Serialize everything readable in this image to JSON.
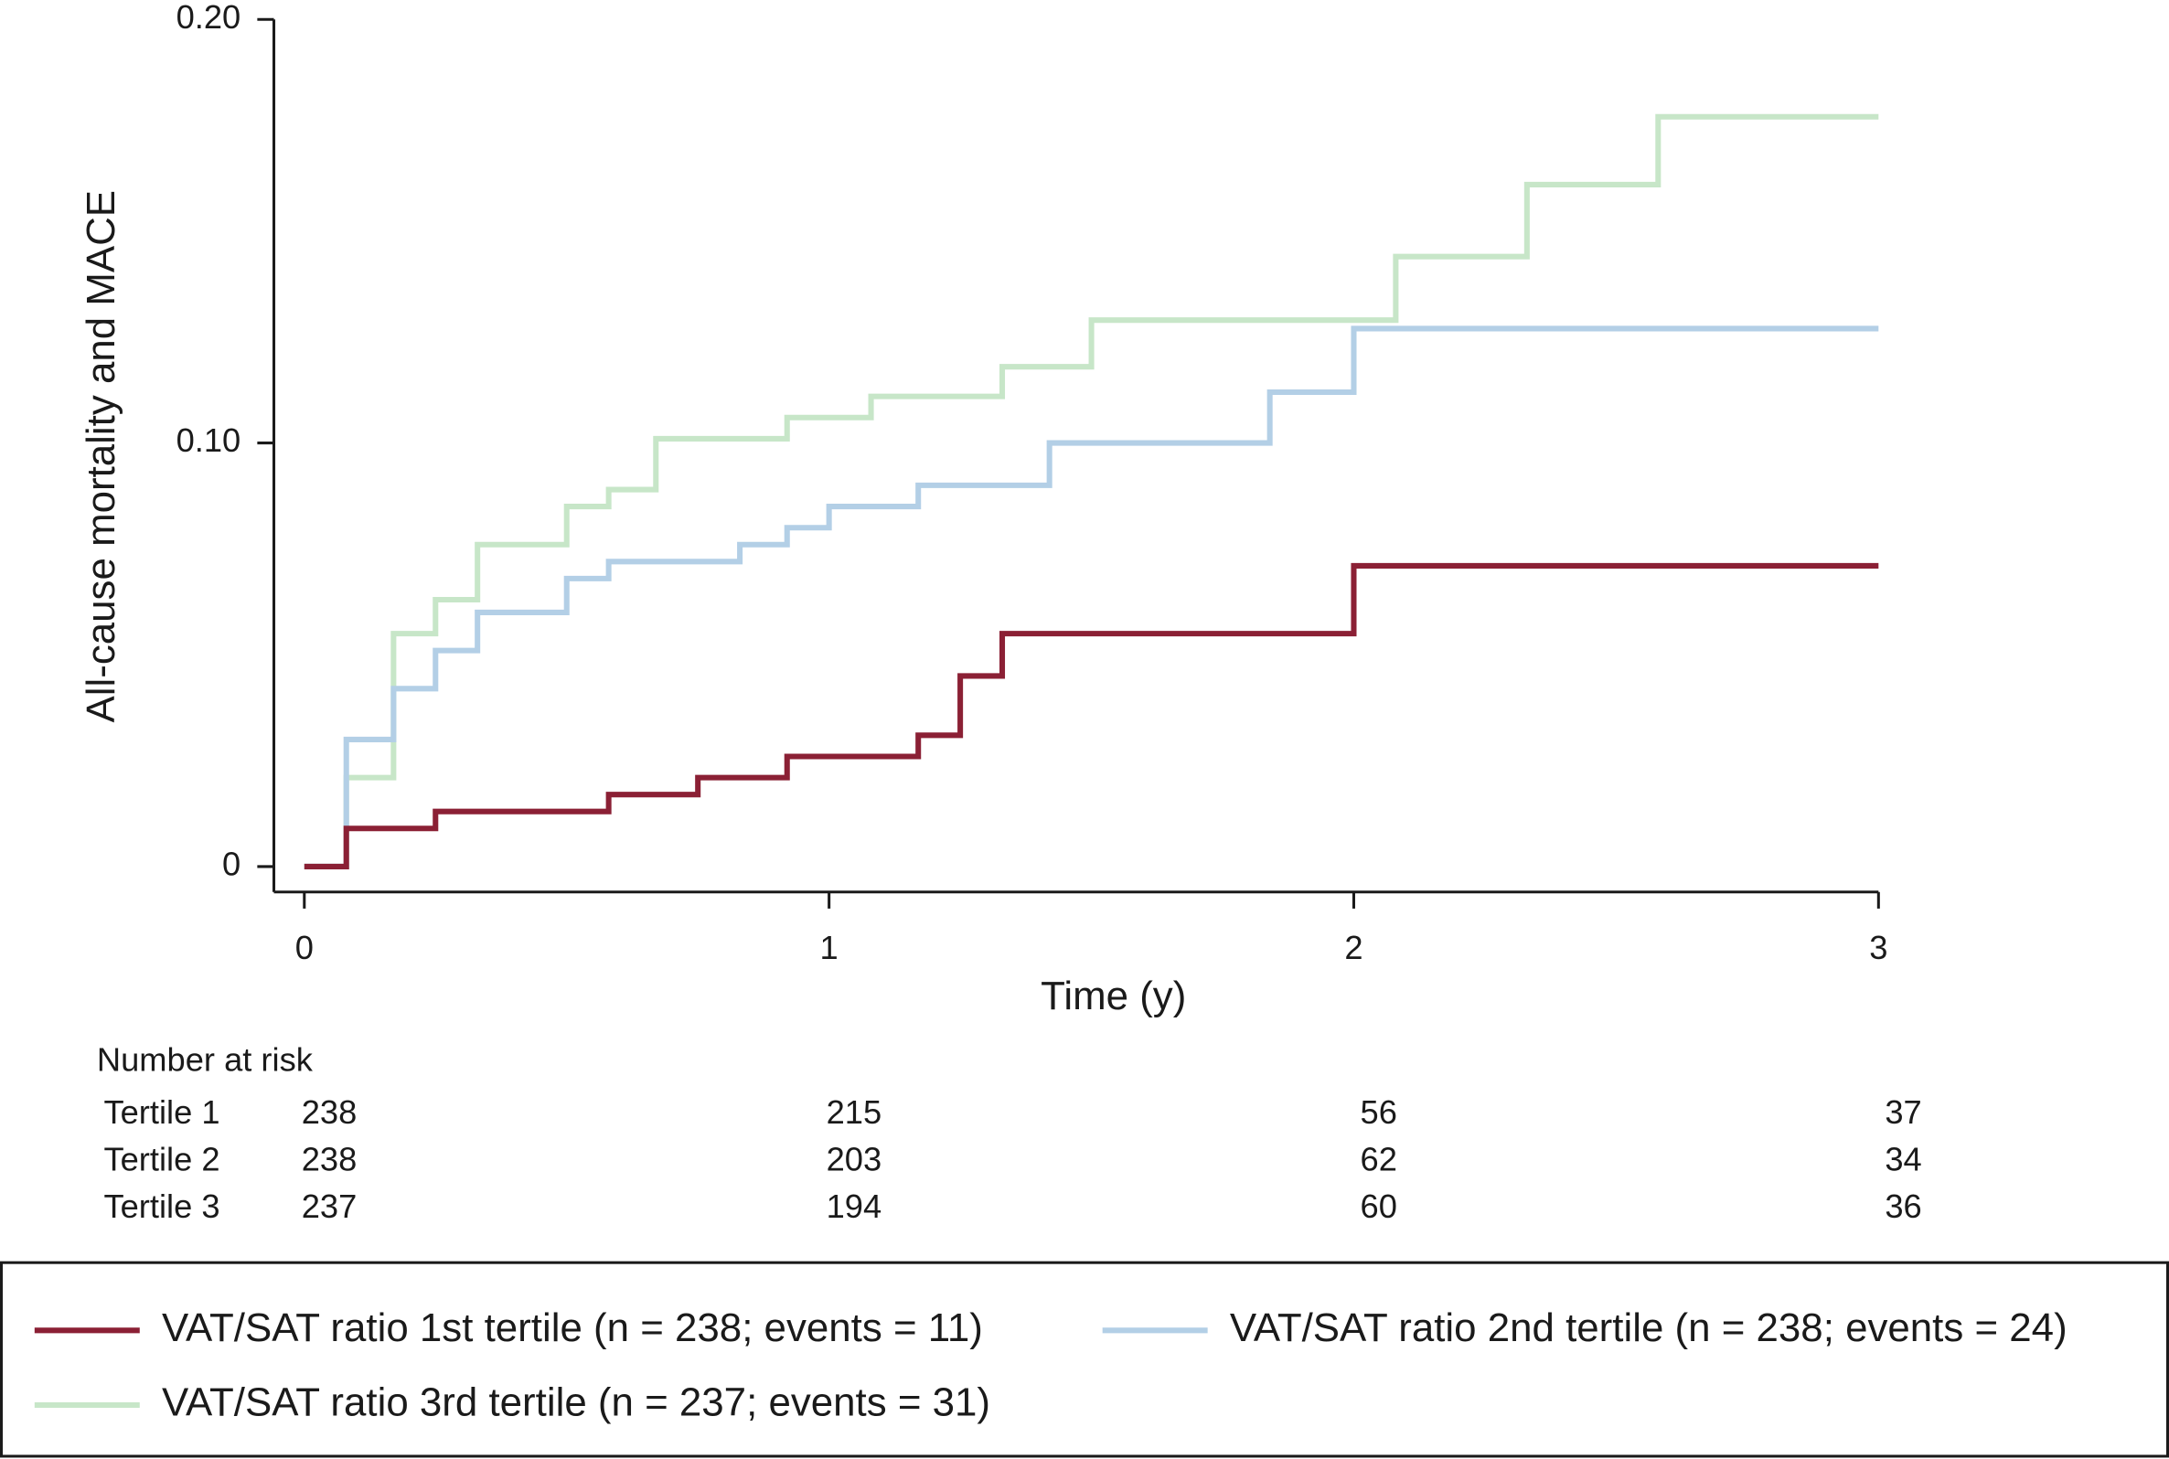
{
  "chart_data": {
    "type": "step",
    "y_label": "All-cause mortality and MACE",
    "x_label": "Time (y)",
    "xlim": [
      -0.058,
      3
    ],
    "ylim": [
      -0.006,
      0.2
    ],
    "xticks": [
      0,
      1,
      2,
      3
    ],
    "yticks": [
      0,
      {
        "value": 0.1,
        "label": "0.10"
      },
      {
        "value": 0.2,
        "label": "0.20"
      }
    ],
    "series": [
      {
        "name": "VAT/SAT ratio 1st tertile (n = 238; events = 11)",
        "color": "#8b2035",
        "x": [
          0,
          0.08,
          0.25,
          0.58,
          0.75,
          0.92,
          1.17,
          1.25,
          1.33,
          2,
          3
        ],
        "values": [
          0,
          0.009,
          0.013,
          0.017,
          0.021,
          0.026,
          0.031,
          0.045,
          0.055,
          0.071,
          0.071
        ]
      },
      {
        "name": "VAT/SAT ratio 2nd tertile (n = 238; events = 24)",
        "color": "#b3cfe6",
        "x": [
          0,
          0.08,
          0.17,
          0.25,
          0.33,
          0.5,
          0.58,
          0.83,
          0.92,
          1,
          1.17,
          1.42,
          1.84,
          2,
          3
        ],
        "values": [
          0,
          0.03,
          0.042,
          0.051,
          0.06,
          0.068,
          0.072,
          0.076,
          0.08,
          0.085,
          0.09,
          0.1,
          0.112,
          0.127,
          0.127
        ]
      },
      {
        "name": "VAT/SAT ratio 3rd tertile (n = 237; events = 31)",
        "color": "#c7e6c8",
        "x": [
          0,
          0.08,
          0.17,
          0.25,
          0.33,
          0.5,
          0.58,
          0.67,
          0.92,
          1.08,
          1.33,
          1.5,
          2.08,
          2.33,
          2.58,
          3
        ],
        "values": [
          0,
          0.021,
          0.055,
          0.063,
          0.076,
          0.085,
          0.089,
          0.101,
          0.106,
          0.111,
          0.118,
          0.129,
          0.144,
          0.161,
          0.177,
          0.177
        ]
      }
    ],
    "risk_table": {
      "title": "Number at risk",
      "rows": [
        {
          "label": "Tertile 1",
          "values": [
            238,
            215,
            56,
            37
          ]
        },
        {
          "label": "Tertile 2",
          "values": [
            238,
            203,
            62,
            34
          ]
        },
        {
          "label": "Tertile 3",
          "values": [
            237,
            194,
            60,
            36
          ]
        }
      ]
    }
  }
}
